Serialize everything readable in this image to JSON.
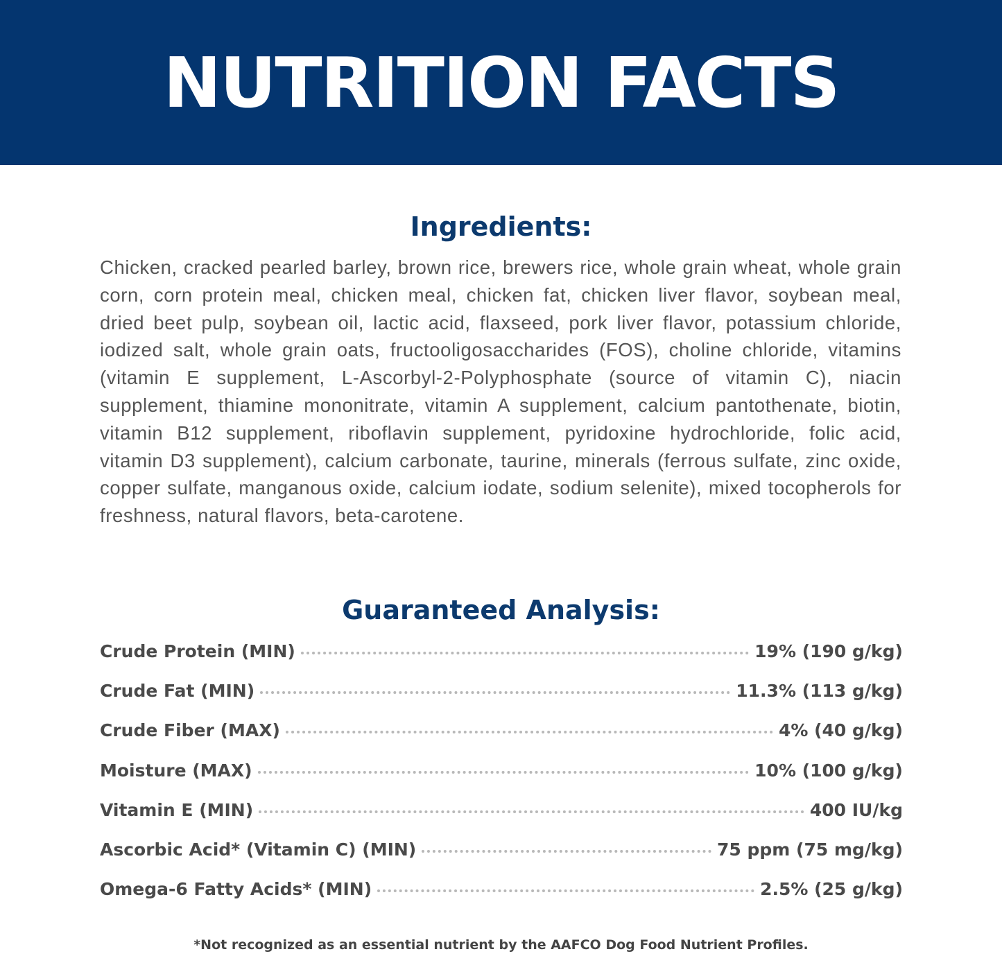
{
  "header": {
    "title": "NUTRITION FACTS",
    "background": "#04356f"
  },
  "ingredients": {
    "heading": "Ingredients:",
    "text": "Chicken, cracked pearled barley, brown rice, brewers rice, whole grain wheat, whole grain corn, corn protein meal, chicken meal, chicken fat, chicken liver flavor, soybean meal, dried beet pulp, soybean oil, lactic acid, flaxseed, pork liver flavor, potassium chloride, iodized salt, whole grain oats, fructooligosaccharides (FOS), choline chloride, vitamins (vitamin E supplement, L-Ascorbyl-2-Polyphosphate (source of vitamin C), niacin supplement, thiamine mononitrate, vitamin A supplement, calcium pantothenate, biotin, vitamin B12 supplement, riboflavin supplement, pyridoxine hydrochloride, folic acid, vitamin D3 supplement), calcium carbonate, taurine, minerals (ferrous sulfate, zinc oxide, copper sulfate, manganous oxide, calcium iodate, sodium selenite), mixed tocopherols for freshness, natural flavors, beta-carotene."
  },
  "analysis": {
    "heading": "Guaranteed Analysis:",
    "rows": [
      {
        "label": "Crude Protein (MIN)",
        "value": "19% (190 g/kg)"
      },
      {
        "label": "Crude Fat (MIN)",
        "value": "11.3% (113 g/kg)"
      },
      {
        "label": "Crude Fiber (MAX)",
        "value": "4% (40 g/kg)"
      },
      {
        "label": "Moisture (MAX)",
        "value": "10% (100 g/kg)"
      },
      {
        "label": "Vitamin E (MIN)",
        "value": "400 IU/kg"
      },
      {
        "label": "Ascorbic Acid* (Vitamin C) (MIN)",
        "value": "75 ppm (75 mg/kg)"
      },
      {
        "label": "Omega-6 Fatty Acids* (MIN)",
        "value": "2.5% (25 g/kg)"
      }
    ]
  },
  "footnote": "*Not recognized as an essential nutrient by the AAFCO Dog Food Nutrient Profiles."
}
